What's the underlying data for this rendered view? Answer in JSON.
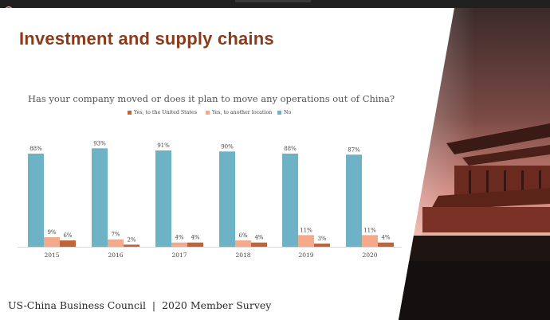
{
  "slide": {
    "title": "Investment and supply chains",
    "footer": "US-China Business Council  |  2020 Member Survey"
  },
  "chart_data": {
    "type": "bar",
    "title": "Has your company moved or does it plan to move any operations out of China?",
    "categories": [
      "2015",
      "2016",
      "2017",
      "2018",
      "2019",
      "2020"
    ],
    "series": [
      {
        "name": "Yes, to the United States",
        "color": "#c0653a",
        "values": [
          6,
          2,
          4,
          4,
          3,
          4
        ]
      },
      {
        "name": "Yes, to another location",
        "color": "#f4a98a",
        "values": [
          9,
          7,
          4,
          6,
          11,
          11
        ]
      },
      {
        "name": "No",
        "color": "#6eb2c6",
        "values": [
          88,
          93,
          91,
          90,
          88,
          87
        ]
      }
    ],
    "value_suffix": "%",
    "ylim": [
      0,
      100
    ],
    "grid": false,
    "legend_position": "top",
    "xlabel": "",
    "ylabel": ""
  }
}
